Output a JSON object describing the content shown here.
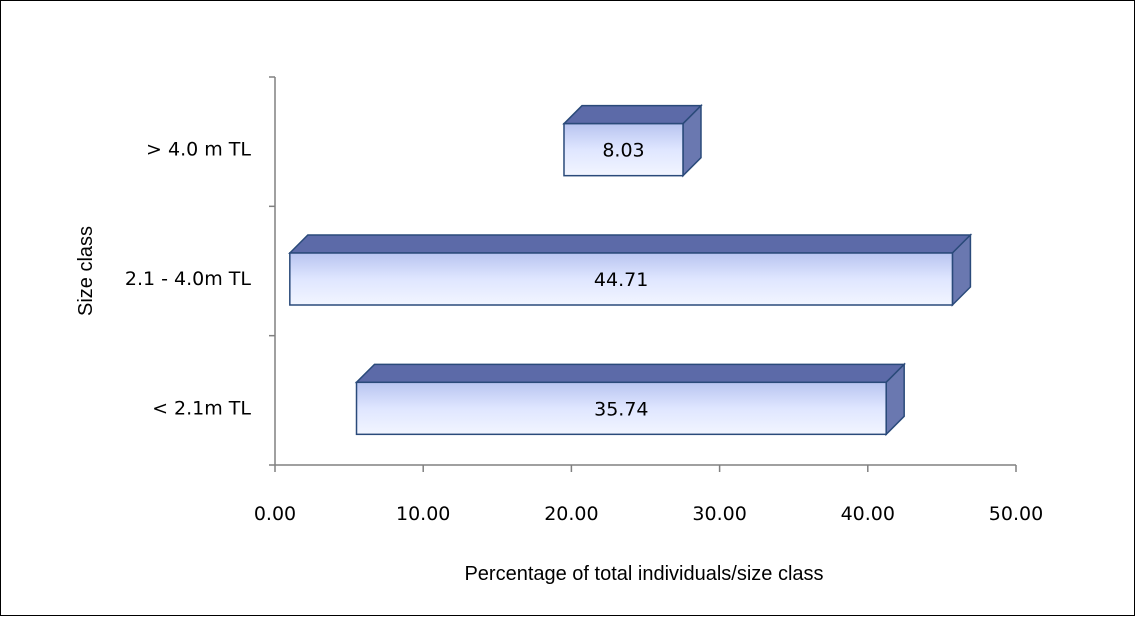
{
  "chart_data": {
    "type": "bar",
    "orientation": "horizontal",
    "categories": [
      "< 2.1m TL",
      "2.1 - 4.0m TL",
      "> 4.0 m TL"
    ],
    "values": [
      35.74,
      44.71,
      8.03
    ],
    "data_labels": [
      "35.74",
      "44.71",
      "8.03"
    ],
    "xlabel": "Percentage of total individuals/size class",
    "ylabel": "Size class",
    "xlim": [
      0,
      50
    ],
    "xticks": [
      0,
      10,
      20,
      30,
      40,
      50
    ],
    "xtick_labels": [
      "0.00",
      "10.00",
      "20.00",
      "30.00",
      "40.00",
      "50.00"
    ],
    "grid": false,
    "legend": "none",
    "style": "3d-cylinder-like bars",
    "colors": {
      "bar_light": "#e6ecff",
      "bar_mid": "#b8c4f0",
      "bar_top": "#5c6aa8",
      "bar_side": "#6a78b0",
      "bar_outline": "#2a4a7a",
      "axis": "#808080"
    }
  }
}
